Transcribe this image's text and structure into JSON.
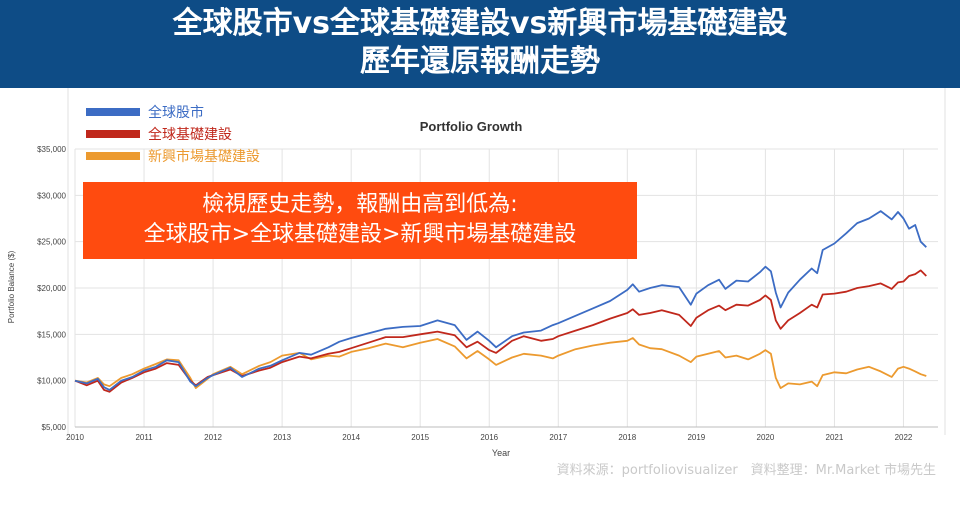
{
  "header": {
    "title_line1": "全球股市vs全球基礎建設vs新興市場基礎建設",
    "title_line2": "歷年還原報酬走勢"
  },
  "callout": {
    "line1": "檢視歷史走勢，報酬由高到低為:",
    "line2": "全球股市>全球基礎建設>新興市場基礎建設"
  },
  "source_note": "資料來源：portfoliovisualizer　資料整理：Mr.Market 市場先生",
  "colors": {
    "global_stock": "#3c6cc4",
    "global_infra": "#c0281c",
    "em_infra": "#ec9a2f",
    "callout_bg": "#ff4b0f",
    "banner_bg": "#0e4c86"
  },
  "chart_data": {
    "type": "line",
    "title": "Portfolio Growth",
    "xlabel": "Year",
    "ylabel": "Portfolio Balance ($)",
    "x_ticks": [
      "2010",
      "2011",
      "2012",
      "2013",
      "2014",
      "2015",
      "2016",
      "2017",
      "2018",
      "2019",
      "2020",
      "2021",
      "2022"
    ],
    "y_ticks": [
      "$5,000",
      "$10,000",
      "$15,000",
      "$20,000",
      "$25,000",
      "$30,000",
      "$35,000"
    ],
    "xlim": [
      2010.0,
      2022.5
    ],
    "ylim": [
      5000,
      35000
    ],
    "grid": true,
    "legend_position": "top-left",
    "series": [
      {
        "name": "全球股市",
        "color": "#3c6cc4",
        "points": [
          [
            2010.0,
            10000
          ],
          [
            2010.17,
            9700
          ],
          [
            2010.33,
            10200
          ],
          [
            2010.42,
            9300
          ],
          [
            2010.5,
            9000
          ],
          [
            2010.67,
            10000
          ],
          [
            2010.83,
            10400
          ],
          [
            2011.0,
            11100
          ],
          [
            2011.17,
            11500
          ],
          [
            2011.33,
            12200
          ],
          [
            2011.5,
            12000
          ],
          [
            2011.67,
            9900
          ],
          [
            2011.75,
            9400
          ],
          [
            2011.92,
            10300
          ],
          [
            2012.0,
            10600
          ],
          [
            2012.25,
            11400
          ],
          [
            2012.42,
            10400
          ],
          [
            2012.67,
            11300
          ],
          [
            2012.83,
            11600
          ],
          [
            2013.0,
            12200
          ],
          [
            2013.25,
            13000
          ],
          [
            2013.42,
            12800
          ],
          [
            2013.67,
            13600
          ],
          [
            2013.83,
            14200
          ],
          [
            2014.0,
            14600
          ],
          [
            2014.25,
            15100
          ],
          [
            2014.5,
            15600
          ],
          [
            2014.75,
            15800
          ],
          [
            2015.0,
            15900
          ],
          [
            2015.25,
            16500
          ],
          [
            2015.5,
            16000
          ],
          [
            2015.67,
            14400
          ],
          [
            2015.83,
            15300
          ],
          [
            2016.0,
            14300
          ],
          [
            2016.1,
            13600
          ],
          [
            2016.33,
            14800
          ],
          [
            2016.5,
            15200
          ],
          [
            2016.75,
            15400
          ],
          [
            2016.92,
            16000
          ],
          [
            2017.0,
            16200
          ],
          [
            2017.25,
            17000
          ],
          [
            2017.5,
            17800
          ],
          [
            2017.75,
            18600
          ],
          [
            2018.0,
            19800
          ],
          [
            2018.08,
            20400
          ],
          [
            2018.17,
            19600
          ],
          [
            2018.33,
            20000
          ],
          [
            2018.5,
            20300
          ],
          [
            2018.75,
            20100
          ],
          [
            2018.92,
            18200
          ],
          [
            2019.0,
            19400
          ],
          [
            2019.17,
            20300
          ],
          [
            2019.33,
            20900
          ],
          [
            2019.42,
            19900
          ],
          [
            2019.58,
            20800
          ],
          [
            2019.75,
            20700
          ],
          [
            2019.92,
            21700
          ],
          [
            2020.0,
            22300
          ],
          [
            2020.08,
            21800
          ],
          [
            2020.15,
            19500
          ],
          [
            2020.22,
            17900
          ],
          [
            2020.33,
            19500
          ],
          [
            2020.5,
            20900
          ],
          [
            2020.67,
            22100
          ],
          [
            2020.75,
            21600
          ],
          [
            2020.83,
            24100
          ],
          [
            2021.0,
            24800
          ],
          [
            2021.17,
            25900
          ],
          [
            2021.33,
            27000
          ],
          [
            2021.5,
            27500
          ],
          [
            2021.67,
            28300
          ],
          [
            2021.83,
            27400
          ],
          [
            2021.92,
            28200
          ],
          [
            2022.0,
            27500
          ],
          [
            2022.08,
            26400
          ],
          [
            2022.17,
            26800
          ],
          [
            2022.25,
            25000
          ],
          [
            2022.33,
            24400
          ]
        ]
      },
      {
        "name": "全球基礎建設",
        "color": "#c0281c",
        "points": [
          [
            2010.0,
            10000
          ],
          [
            2010.17,
            9500
          ],
          [
            2010.33,
            10000
          ],
          [
            2010.42,
            9000
          ],
          [
            2010.5,
            8800
          ],
          [
            2010.67,
            9800
          ],
          [
            2010.83,
            10300
          ],
          [
            2011.0,
            10900
          ],
          [
            2011.17,
            11300
          ],
          [
            2011.33,
            11900
          ],
          [
            2011.5,
            11700
          ],
          [
            2011.67,
            10000
          ],
          [
            2011.75,
            9500
          ],
          [
            2011.92,
            10400
          ],
          [
            2012.0,
            10600
          ],
          [
            2012.25,
            11200
          ],
          [
            2012.42,
            10500
          ],
          [
            2012.67,
            11100
          ],
          [
            2012.83,
            11400
          ],
          [
            2013.0,
            12000
          ],
          [
            2013.25,
            12600
          ],
          [
            2013.42,
            12400
          ],
          [
            2013.67,
            12900
          ],
          [
            2013.83,
            13100
          ],
          [
            2014.0,
            13500
          ],
          [
            2014.25,
            14100
          ],
          [
            2014.5,
            14700
          ],
          [
            2014.75,
            14700
          ],
          [
            2015.0,
            15000
          ],
          [
            2015.25,
            15300
          ],
          [
            2015.5,
            14900
          ],
          [
            2015.67,
            13600
          ],
          [
            2015.83,
            14200
          ],
          [
            2016.0,
            13300
          ],
          [
            2016.1,
            13000
          ],
          [
            2016.33,
            14300
          ],
          [
            2016.5,
            14800
          ],
          [
            2016.75,
            14300
          ],
          [
            2016.92,
            14500
          ],
          [
            2017.0,
            14800
          ],
          [
            2017.25,
            15400
          ],
          [
            2017.5,
            16000
          ],
          [
            2017.75,
            16700
          ],
          [
            2018.0,
            17300
          ],
          [
            2018.08,
            17700
          ],
          [
            2018.17,
            17100
          ],
          [
            2018.33,
            17300
          ],
          [
            2018.5,
            17600
          ],
          [
            2018.75,
            17100
          ],
          [
            2018.92,
            15900
          ],
          [
            2019.0,
            16800
          ],
          [
            2019.17,
            17600
          ],
          [
            2019.33,
            18100
          ],
          [
            2019.42,
            17600
          ],
          [
            2019.58,
            18200
          ],
          [
            2019.75,
            18100
          ],
          [
            2019.92,
            18700
          ],
          [
            2020.0,
            19200
          ],
          [
            2020.08,
            18700
          ],
          [
            2020.15,
            16500
          ],
          [
            2020.22,
            15600
          ],
          [
            2020.33,
            16500
          ],
          [
            2020.5,
            17300
          ],
          [
            2020.67,
            18200
          ],
          [
            2020.75,
            17900
          ],
          [
            2020.83,
            19300
          ],
          [
            2021.0,
            19400
          ],
          [
            2021.17,
            19600
          ],
          [
            2021.33,
            20000
          ],
          [
            2021.5,
            20200
          ],
          [
            2021.67,
            20500
          ],
          [
            2021.83,
            19900
          ],
          [
            2021.92,
            20600
          ],
          [
            2022.0,
            20700
          ],
          [
            2022.08,
            21300
          ],
          [
            2022.17,
            21500
          ],
          [
            2022.25,
            21900
          ],
          [
            2022.33,
            21300
          ]
        ]
      },
      {
        "name": "新興市場基礎建設",
        "color": "#ec9a2f",
        "points": [
          [
            2010.0,
            10000
          ],
          [
            2010.17,
            9800
          ],
          [
            2010.33,
            10300
          ],
          [
            2010.42,
            9600
          ],
          [
            2010.5,
            9400
          ],
          [
            2010.67,
            10300
          ],
          [
            2010.83,
            10700
          ],
          [
            2011.0,
            11300
          ],
          [
            2011.17,
            11800
          ],
          [
            2011.33,
            12300
          ],
          [
            2011.5,
            12200
          ],
          [
            2011.67,
            10300
          ],
          [
            2011.75,
            9200
          ],
          [
            2011.92,
            10200
          ],
          [
            2012.0,
            10700
          ],
          [
            2012.25,
            11500
          ],
          [
            2012.42,
            10700
          ],
          [
            2012.67,
            11600
          ],
          [
            2012.83,
            12000
          ],
          [
            2013.0,
            12700
          ],
          [
            2013.25,
            13000
          ],
          [
            2013.42,
            12300
          ],
          [
            2013.67,
            12700
          ],
          [
            2013.83,
            12600
          ],
          [
            2014.0,
            13100
          ],
          [
            2014.25,
            13500
          ],
          [
            2014.5,
            14000
          ],
          [
            2014.75,
            13600
          ],
          [
            2015.0,
            14100
          ],
          [
            2015.25,
            14500
          ],
          [
            2015.5,
            13700
          ],
          [
            2015.67,
            12400
          ],
          [
            2015.83,
            13200
          ],
          [
            2016.0,
            12300
          ],
          [
            2016.1,
            11700
          ],
          [
            2016.33,
            12500
          ],
          [
            2016.5,
            12900
          ],
          [
            2016.75,
            12700
          ],
          [
            2016.92,
            12400
          ],
          [
            2017.0,
            12700
          ],
          [
            2017.25,
            13400
          ],
          [
            2017.5,
            13800
          ],
          [
            2017.75,
            14100
          ],
          [
            2018.0,
            14300
          ],
          [
            2018.08,
            14600
          ],
          [
            2018.17,
            13900
          ],
          [
            2018.33,
            13500
          ],
          [
            2018.5,
            13400
          ],
          [
            2018.75,
            12700
          ],
          [
            2018.92,
            12000
          ],
          [
            2019.0,
            12600
          ],
          [
            2019.17,
            12900
          ],
          [
            2019.33,
            13200
          ],
          [
            2019.42,
            12500
          ],
          [
            2019.58,
            12700
          ],
          [
            2019.75,
            12300
          ],
          [
            2019.92,
            12900
          ],
          [
            2020.0,
            13300
          ],
          [
            2020.08,
            12900
          ],
          [
            2020.15,
            10300
          ],
          [
            2020.22,
            9200
          ],
          [
            2020.33,
            9700
          ],
          [
            2020.5,
            9600
          ],
          [
            2020.67,
            9900
          ],
          [
            2020.75,
            9400
          ],
          [
            2020.83,
            10600
          ],
          [
            2021.0,
            10900
          ],
          [
            2021.17,
            10800
          ],
          [
            2021.33,
            11200
          ],
          [
            2021.5,
            11500
          ],
          [
            2021.67,
            11000
          ],
          [
            2021.83,
            10400
          ],
          [
            2021.92,
            11300
          ],
          [
            2022.0,
            11500
          ],
          [
            2022.08,
            11300
          ],
          [
            2022.17,
            11000
          ],
          [
            2022.25,
            10700
          ],
          [
            2022.33,
            10500
          ]
        ]
      }
    ]
  }
}
